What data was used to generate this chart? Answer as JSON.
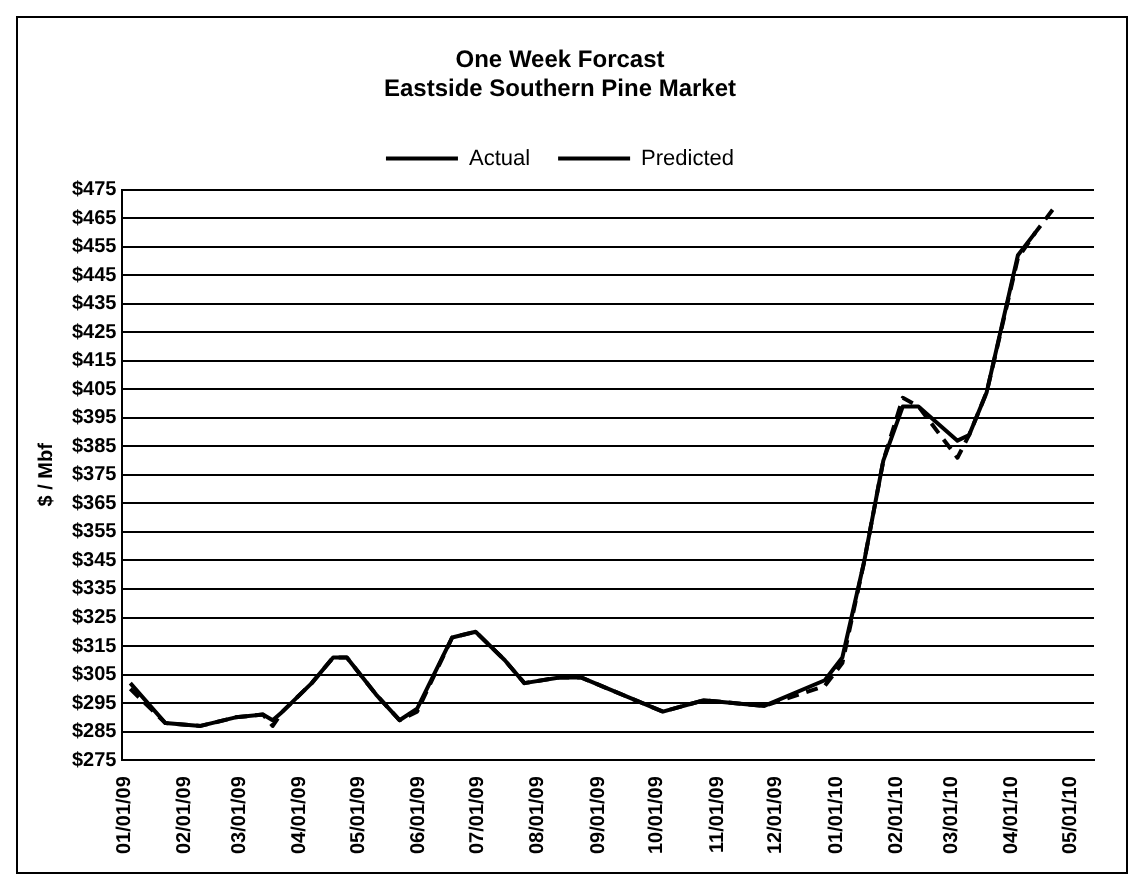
{
  "chart_data": {
    "type": "line",
    "title": [
      "One Week Forcast",
      "Eastside Southern Pine Market"
    ],
    "ylabel": "$ / Mbf",
    "legend": "top",
    "grid": "y",
    "marker": "none",
    "xlim": [
      "2008-12-28",
      "2010-05-10"
    ],
    "xticks": [
      {
        "value": "2009-01-01",
        "label": "01/01/09"
      },
      {
        "value": "2009-02-01",
        "label": "02/01/09"
      },
      {
        "value": "2009-03-01",
        "label": "03/01/09"
      },
      {
        "value": "2009-04-01",
        "label": "04/01/09"
      },
      {
        "value": "2009-05-01",
        "label": "05/01/09"
      },
      {
        "value": "2009-06-01",
        "label": "06/01/09"
      },
      {
        "value": "2009-07-01",
        "label": "07/01/09"
      },
      {
        "value": "2009-08-01",
        "label": "08/01/09"
      },
      {
        "value": "2009-09-01",
        "label": "09/01/09"
      },
      {
        "value": "2009-10-01",
        "label": "10/01/09"
      },
      {
        "value": "2009-11-01",
        "label": "11/01/09"
      },
      {
        "value": "2009-12-01",
        "label": "12/01/09"
      },
      {
        "value": "2010-01-01",
        "label": "01/01/10"
      },
      {
        "value": "2010-02-01",
        "label": "02/01/10"
      },
      {
        "value": "2010-03-01",
        "label": "03/01/10"
      },
      {
        "value": "2010-04-01",
        "label": "04/01/10"
      },
      {
        "value": "2010-05-01",
        "label": "05/01/10"
      }
    ],
    "ylim": [
      275,
      475
    ],
    "yticks": [
      {
        "value": 275,
        "label": "$275"
      },
      {
        "value": 285,
        "label": "$285"
      },
      {
        "value": 295,
        "label": "$295"
      },
      {
        "value": 305,
        "label": "$305"
      },
      {
        "value": 315,
        "label": "$315"
      },
      {
        "value": 325,
        "label": "$325"
      },
      {
        "value": 335,
        "label": "$335"
      },
      {
        "value": 345,
        "label": "$345"
      },
      {
        "value": 355,
        "label": "$355"
      },
      {
        "value": 365,
        "label": "$365"
      },
      {
        "value": 375,
        "label": "$375"
      },
      {
        "value": 385,
        "label": "$385"
      },
      {
        "value": 395,
        "label": "$395"
      },
      {
        "value": 405,
        "label": "$405"
      },
      {
        "value": 415,
        "label": "$415"
      },
      {
        "value": 425,
        "label": "$425"
      },
      {
        "value": 435,
        "label": "$435"
      },
      {
        "value": 445,
        "label": "$445"
      },
      {
        "value": 455,
        "label": "$455"
      },
      {
        "value": 465,
        "label": "$465"
      },
      {
        "value": 475,
        "label": "$475"
      }
    ],
    "series": [
      {
        "name": "Actual",
        "color": "#000000",
        "line_style": "solid",
        "x": [
          "2009-01-01",
          "2009-01-19",
          "2009-02-06",
          "2009-02-24",
          "2009-03-10",
          "2009-03-15",
          "2009-03-20",
          "2009-04-04",
          "2009-04-15",
          "2009-04-22",
          "2009-05-07",
          "2009-05-19",
          "2009-05-28",
          "2009-06-15",
          "2009-06-27",
          "2009-07-12",
          "2009-07-22",
          "2009-08-09",
          "2009-08-20",
          "2009-10-01",
          "2009-10-22",
          "2009-11-22",
          "2009-12-23",
          "2010-01-01",
          "2010-01-12",
          "2010-01-22",
          "2010-02-01",
          "2010-02-09",
          "2010-03-01",
          "2010-03-07",
          "2010-03-16",
          "2010-04-01",
          "2010-04-10"
        ],
        "values": [
          302,
          288,
          287,
          290,
          291,
          289,
          292,
          302,
          311,
          311,
          298,
          289,
          293,
          318,
          320,
          310,
          302,
          304,
          304,
          292,
          296,
          294,
          303,
          311,
          344,
          380,
          399,
          399,
          387,
          389,
          404,
          452,
          460
        ]
      },
      {
        "name": "Predicted",
        "color": "#000000",
        "line_style": "dashed",
        "x": [
          "2009-01-01",
          "2009-01-19",
          "2009-02-06",
          "2009-02-24",
          "2009-03-10",
          "2009-03-15",
          "2009-03-20",
          "2009-04-04",
          "2009-04-15",
          "2009-04-22",
          "2009-05-07",
          "2009-05-19",
          "2009-05-28",
          "2009-06-15",
          "2009-06-27",
          "2009-07-12",
          "2009-07-22",
          "2009-08-09",
          "2009-08-20",
          "2009-10-01",
          "2009-10-22",
          "2009-11-22",
          "2009-12-23",
          "2010-01-01",
          "2010-01-12",
          "2010-01-22",
          "2010-02-01",
          "2010-02-09",
          "2010-03-01",
          "2010-03-07",
          "2010-03-16",
          "2010-04-01",
          "2010-04-10",
          "2010-04-20"
        ],
        "values": [
          300,
          288,
          287,
          290,
          291,
          287,
          292,
          302,
          311,
          311,
          298,
          289,
          292,
          318,
          320,
          310,
          302,
          304,
          304,
          292,
          296,
          294,
          301,
          309,
          344,
          380,
          402,
          399,
          381,
          389,
          404,
          451,
          460,
          469
        ]
      }
    ]
  }
}
